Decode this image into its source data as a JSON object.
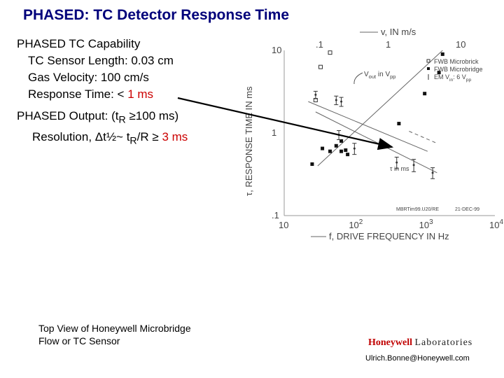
{
  "title": "PHASED: TC Detector Response Time",
  "capability": {
    "heading": "PHASED TC Capability",
    "sensor_length": "TC Sensor Length: 0.03 cm",
    "gas_velocity": "Gas Velocity: 100 cm/s",
    "response_prefix": "Response Time: < ",
    "response_value": "1 ms"
  },
  "output": {
    "line1_a": "PHASED Output: (t",
    "line1_sub": "R",
    "line1_b": " ≥100 ms)",
    "line2_a": "Resolution, Δt",
    "line2_half": "½",
    "line2_b": "~ t",
    "line2_sub": "R",
    "line2_c": "/R ≥ ",
    "line2_value": "3 ms"
  },
  "caption": {
    "line1": "Top View of Honeywell Microbridge",
    "line2": "Flow or TC Sensor"
  },
  "brand": {
    "name": "Honeywell",
    "suffix": "Laboratories"
  },
  "email": "Ulrich.Bonne@Honeywell.com",
  "colors": {
    "title": "#00007a",
    "highlight": "#cc0000",
    "brand": "#c00000"
  },
  "chart_data": {
    "type": "scatter",
    "x_scale": "log",
    "y_scale": "log",
    "xlim": [
      10,
      10000
    ],
    "ylim": [
      0.1,
      10
    ],
    "xlabel": "f, DRIVE FREQUENCY IN Hz",
    "ylabel": "τ, RESPONSE TIME IN ms",
    "x_ticks": [
      {
        "value": 10,
        "label": "10"
      },
      {
        "value": 100,
        "label": "10",
        "exp": "2"
      },
      {
        "value": 1000,
        "label": "10",
        "exp": "3"
      },
      {
        "value": 10000,
        "label": "10",
        "exp": "4"
      }
    ],
    "y_ticks": [
      {
        "value": 10,
        "label": "10"
      },
      {
        "value": 1,
        "label": "1"
      },
      {
        "value": 0.1,
        "label": ".1"
      }
    ],
    "top_axis_label": "v, IN m/s",
    "top_ticks": [
      {
        "value": 0.1,
        "label": ".1"
      },
      {
        "value": 1,
        "label": "1"
      },
      {
        "value": 10,
        "label": "10"
      }
    ],
    "legend": [
      {
        "marker": "open-square",
        "label": "FWB Microbrick"
      },
      {
        "marker": "filled-square",
        "label": "FWB Microbridge"
      },
      {
        "marker": "errorbar",
        "label": "EM V",
        "sub": "in",
        "label2": ": 6 V",
        "sub2": "pp"
      }
    ],
    "annotations": {
      "vout": "V",
      "vout_sub": "out",
      "vout_mid": " in V",
      "vout_sub2": "pp",
      "tau": "τ in ms",
      "footer_id": "MBRTim99.U20/RE",
      "footer_date": "21-DEC-99"
    },
    "series": [
      {
        "name": "FWB Microbrick",
        "marker": "open-square",
        "points": [
          [
            28,
            2.5
          ],
          [
            33,
            6.3
          ],
          [
            45,
            9.4
          ]
        ]
      },
      {
        "name": "FWB Microbridge",
        "marker": "filled-square",
        "points": [
          [
            25,
            0.42
          ],
          [
            35,
            0.65
          ],
          [
            45,
            0.6
          ],
          [
            55,
            0.7
          ],
          [
            65,
            0.6
          ],
          [
            80,
            0.55
          ],
          [
            65,
            0.8
          ],
          [
            75,
            0.62
          ],
          [
            430,
            1.3
          ],
          [
            1000,
            3.0
          ],
          [
            1600,
            5.4
          ],
          [
            1800,
            9.0
          ]
        ]
      },
      {
        "name": "EM",
        "marker": "errorbar",
        "points": [
          {
            "x": 28,
            "y": 2.9,
            "err": 0.3
          },
          {
            "x": 55,
            "y": 2.5,
            "err": 0.3
          },
          {
            "x": 65,
            "y": 2.4,
            "err": 0.3
          },
          {
            "x": 60,
            "y": 0.95,
            "err": 0.12
          },
          {
            "x": 100,
            "y": 0.65,
            "err": 0.1
          },
          {
            "x": 400,
            "y": 0.44,
            "err": 0.07
          },
          {
            "x": 700,
            "y": 0.41,
            "err": 0.07
          },
          {
            "x": 1300,
            "y": 0.33,
            "err": 0.05
          }
        ]
      }
    ],
    "trend_lines": [
      {
        "id": "vout-line",
        "style": "solid",
        "points": [
          [
            22,
            2.4
          ],
          [
            1100,
            0.6
          ]
        ]
      },
      {
        "id": "tau-line",
        "style": "solid",
        "points": [
          [
            28,
            1.8
          ],
          [
            1500,
            0.33
          ]
        ]
      },
      {
        "id": "velocity-line",
        "style": "solid",
        "points": [
          [
            30,
            0.4
          ],
          [
            1800,
            10
          ]
        ]
      },
      {
        "id": "tau-dash",
        "style": "dashed",
        "points": [
          [
            600,
            1.05
          ],
          [
            1500,
            0.75
          ]
        ]
      }
    ]
  }
}
